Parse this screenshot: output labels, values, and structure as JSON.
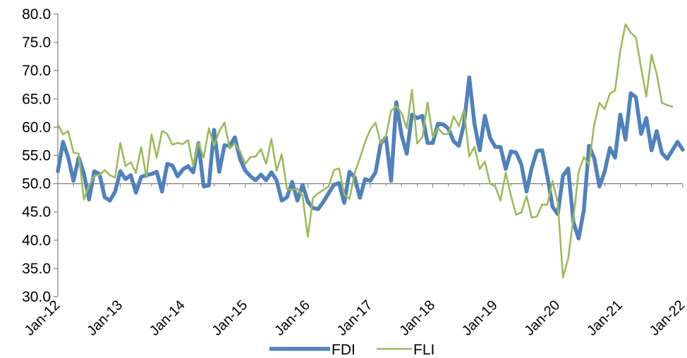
{
  "chart_data": {
    "type": "line",
    "title": "",
    "xlabel": "",
    "ylabel": "",
    "ylim": [
      30,
      80
    ],
    "y_ticks": [
      "30.0",
      "35.0",
      "40.0",
      "45.0",
      "50.0",
      "55.0",
      "60.0",
      "65.0",
      "70.0",
      "75.0",
      "80.0"
    ],
    "x_ticks": [
      "Jan-12",
      "Jan-13",
      "Jan-14",
      "Jan-15",
      "Jan-16",
      "Jan-17",
      "Jan-18",
      "Jan-19",
      "Jan-20",
      "Jan-21",
      "Jan-22"
    ],
    "grid": false,
    "legend_position": "bottom",
    "series": [
      {
        "name": "FDI",
        "color": "#4f81bd",
        "values": [
          52.2,
          57.4,
          54.6,
          50.5,
          54.6,
          51.8,
          47.2,
          52.2,
          51.7,
          47.6,
          47.0,
          48.6,
          52.2,
          50.8,
          51.5,
          48.4,
          51.2,
          51.5,
          51.7,
          52.1,
          48.6,
          53.5,
          53.2,
          51.3,
          52.5,
          53.1,
          52.0,
          57.2,
          49.5,
          49.7,
          59.5,
          52.1,
          56.8,
          56.7,
          58.2,
          54.3,
          52.3,
          51.3,
          50.6,
          51.6,
          50.6,
          52.0,
          50.6,
          47.0,
          47.6,
          50.3,
          47.0,
          49.8,
          46.8,
          45.7,
          45.5,
          46.8,
          48.3,
          49.8,
          50.1,
          46.6,
          52.1,
          51.1,
          47.5,
          50.8,
          50.5,
          52.0,
          57.1,
          58.2,
          50.5,
          64.4,
          58.6,
          55.3,
          62.2,
          61.6,
          62.0,
          57.2,
          57.2,
          60.6,
          60.5,
          59.7,
          57.5,
          56.7,
          60.6,
          68.8,
          60.6,
          55.9,
          62.0,
          58.1,
          56.5,
          56.5,
          52.6,
          55.7,
          55.5,
          53.4,
          48.6,
          52.8,
          55.8,
          55.9,
          51.3,
          45.9,
          44.6,
          51.4,
          52.7,
          43.2,
          40.3,
          45.3,
          56.7,
          54.5,
          49.5,
          52.1,
          56.3,
          54.6,
          62.2,
          57.8,
          66.0,
          65.3,
          58.8,
          61.6,
          55.9,
          59.3,
          55.4,
          54.4,
          55.9,
          57.4,
          56.0
        ]
      },
      {
        "name": "FLI",
        "color": "#9bbb59",
        "values": [
          60.5,
          58.7,
          59.3,
          55.5,
          55.3,
          47.2,
          49.7,
          51.4,
          51.5,
          52.4,
          51.5,
          51.1,
          57.2,
          53.1,
          53.8,
          51.9,
          56.5,
          51.1,
          58.7,
          54.6,
          59.3,
          58.8,
          56.9,
          57.2,
          57.0,
          57.7,
          53.1,
          57.3,
          54.6,
          59.8,
          56.7,
          59.3,
          60.8,
          56.2,
          57.1,
          55.7,
          53.5,
          54.7,
          54.8,
          56.1,
          53.5,
          57.9,
          52.3,
          55.2,
          49.0,
          48.9,
          49.1,
          47.8,
          40.6,
          47.5,
          48.3,
          48.9,
          49.5,
          52.4,
          52.7,
          48.1,
          47.3,
          51.9,
          54.5,
          57.4,
          59.6,
          60.8,
          57.1,
          58.4,
          62.9,
          63.7,
          62.5,
          59.8,
          66.6,
          57.1,
          58.2,
          64.4,
          58.2,
          59.8,
          58.8,
          58.8,
          61.9,
          60.2,
          63.1,
          54.8,
          56.5,
          52.6,
          53.9,
          50.0,
          49.5,
          47.0,
          51.9,
          47.9,
          44.5,
          44.9,
          47.8,
          44.0,
          44.2,
          46.3,
          46.3,
          50.5,
          46.6,
          33.4,
          36.8,
          43.9,
          52.0,
          54.7,
          53.4,
          60.5,
          64.3,
          63.2,
          65.9,
          66.5,
          73.5,
          78.2,
          76.7,
          75.9,
          70.5,
          65.4,
          72.8,
          69.4,
          64.3,
          63.9,
          63.6
        ]
      }
    ]
  }
}
